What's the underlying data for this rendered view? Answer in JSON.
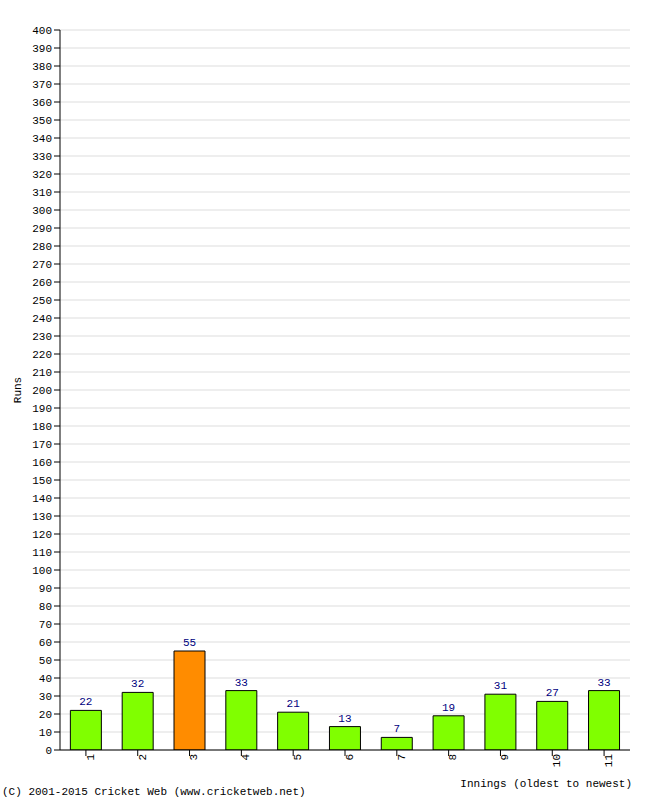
{
  "chart_data": {
    "type": "bar",
    "x_label": "Innings (oldest to newest)",
    "y_label": "Runs",
    "annotations": [
      "(C) 2001-2015 Cricket Web (www.cricketweb.net)"
    ],
    "categories": [
      "1",
      "2",
      "3",
      "4",
      "5",
      "6",
      "7",
      "8",
      "9",
      "10",
      "11"
    ],
    "values": [
      22,
      32,
      55,
      33,
      21,
      13,
      7,
      19,
      31,
      27,
      33
    ],
    "colors": [
      "#80ff00",
      "#80ff00",
      "#ff8c00",
      "#80ff00",
      "#80ff00",
      "#80ff00",
      "#80ff00",
      "#80ff00",
      "#80ff00",
      "#80ff00",
      "#80ff00"
    ],
    "ylim": [
      0,
      400
    ],
    "yticks": [
      0,
      10,
      20,
      30,
      40,
      50,
      60,
      70,
      80,
      90,
      100,
      110,
      120,
      130,
      140,
      150,
      160,
      170,
      180,
      190,
      200,
      210,
      220,
      230,
      240,
      250,
      260,
      270,
      280,
      290,
      300,
      310,
      320,
      330,
      340,
      350,
      360,
      370,
      380,
      390,
      400
    ],
    "grid": true,
    "data_labels": true
  }
}
